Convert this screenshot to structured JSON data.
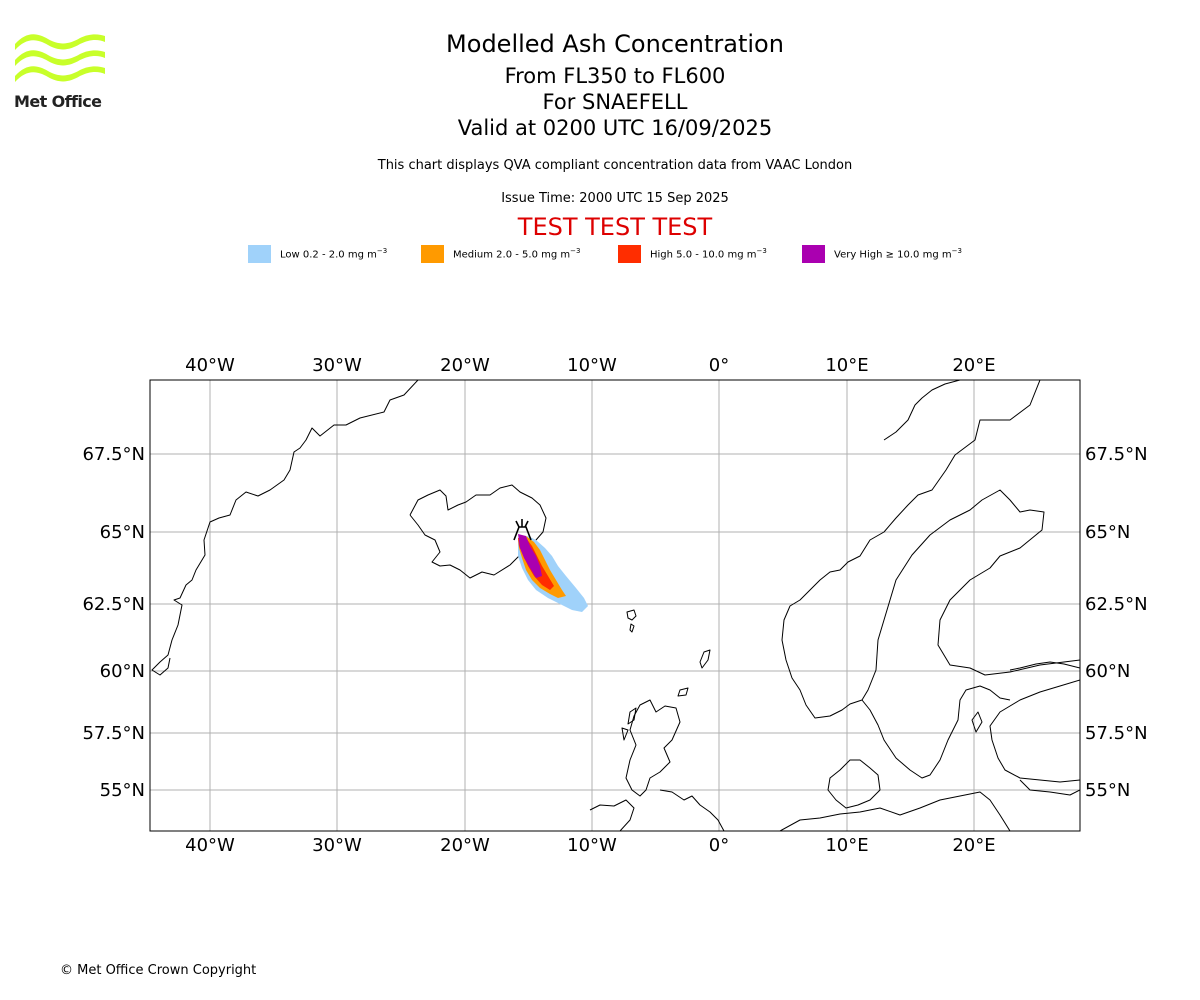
{
  "logo": {
    "brand": "Met Office",
    "wave_color": "#c8ff2a"
  },
  "titles": {
    "main": "Modelled Ash Concentration",
    "levels": "From FL350 to FL600",
    "volcano": "For SNAEFELL",
    "valid": "Valid at 0200 UTC 16/09/2025"
  },
  "note": "This chart displays QVA compliant concentration data from VAAC London",
  "issue_time": "Issue Time: 2000 UTC 15 Sep 2025",
  "test_banner": "TEST TEST TEST",
  "legend": [
    {
      "label": "Low 0.2 - 2.0 mg m",
      "unit_exp": "−3",
      "color": "#a0d2fa"
    },
    {
      "label": "Medium 2.0 - 5.0 mg m",
      "unit_exp": "−3",
      "color": "#ff9a00"
    },
    {
      "label": "High 5.0 - 10.0 mg m",
      "unit_exp": "−3",
      "color": "#ff2d00"
    },
    {
      "label": "Very High  ≥  10.0 mg m",
      "unit_exp": "−3",
      "color": "#aa00b0"
    }
  ],
  "map": {
    "lon_ticks": [
      "40°W",
      "30°W",
      "20°W",
      "10°W",
      "0°",
      "10°E",
      "20°E"
    ],
    "lat_ticks": [
      "67.5°N",
      "65°N",
      "62.5°N",
      "60°N",
      "57.5°N",
      "55°N"
    ],
    "extent": {
      "lon_min": -44.6,
      "lon_max": 28.1,
      "lat_min": 53.6,
      "lat_max": 70.1
    },
    "grid": true,
    "volcano_symbol": "volcano-icon"
  },
  "copyright": "© Met Office Crown Copyright"
}
